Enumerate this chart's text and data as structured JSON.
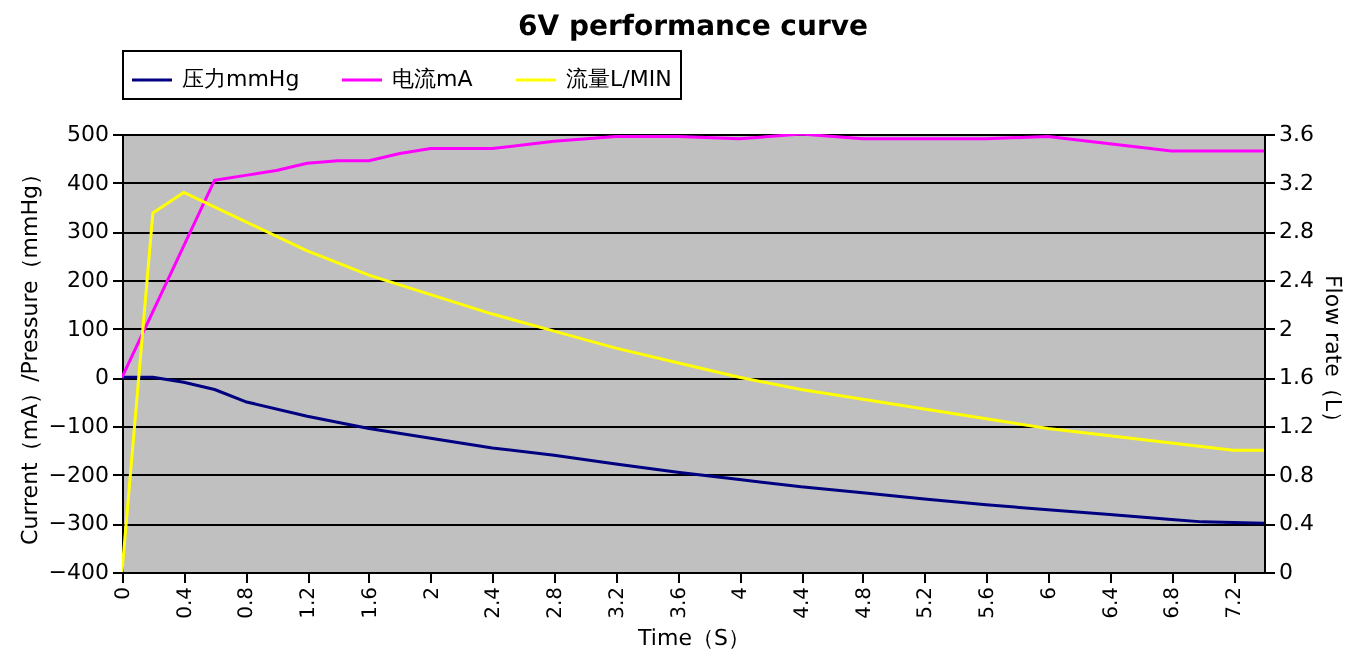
{
  "chart_data": {
    "type": "line",
    "title": "6V performance curve",
    "xlabel": "Time（S）",
    "ylabel": "Current（mA）/Pressure（mmHg）",
    "y2label": "Flow rate（L）",
    "xlim": [
      0,
      7.4
    ],
    "xticks": [
      0,
      0.4,
      0.8,
      1.2,
      1.6,
      2,
      2.4,
      2.8,
      3.2,
      3.6,
      4,
      4.4,
      4.8,
      5.2,
      5.6,
      6,
      6.4,
      6.8,
      7.2
    ],
    "ylim": [
      -400,
      500
    ],
    "yticks": [
      -400,
      -300,
      -200,
      -100,
      0,
      100,
      200,
      300,
      400,
      500
    ],
    "y2lim": [
      0,
      3.6
    ],
    "y2ticks": [
      0,
      0.4,
      0.8,
      1.2,
      1.6,
      2,
      2.4,
      2.8,
      3.2,
      3.6
    ],
    "grid": "y",
    "legend": "top",
    "series": [
      {
        "name": "压力mmHg",
        "color": "#000080",
        "x": [
          0,
          0.2,
          0.4,
          0.6,
          0.8,
          1.2,
          1.6,
          2,
          2.4,
          2.8,
          3.2,
          3.6,
          4,
          4.4,
          4.8,
          5.2,
          5.6,
          6,
          6.4,
          6.8,
          7,
          7.4
        ],
        "values": [
          0,
          0,
          -10,
          -25,
          -50,
          -80,
          -105,
          -125,
          -145,
          -160,
          -178,
          -195,
          -210,
          -225,
          -237,
          -250,
          -262,
          -272,
          -282,
          -292,
          -297,
          -300
        ]
      },
      {
        "name": "电流mA",
        "color": "#ff00ff",
        "x": [
          0,
          0.6,
          0.8,
          1,
          1.2,
          1.4,
          1.6,
          1.8,
          2,
          2.4,
          2.8,
          3.2,
          3.6,
          4,
          4.4,
          4.8,
          5.2,
          5.6,
          6,
          6.4,
          6.8,
          7.4
        ],
        "values": [
          0,
          405,
          415,
          425,
          440,
          445,
          445,
          460,
          470,
          470,
          485,
          495,
          495,
          490,
          500,
          490,
          490,
          490,
          495,
          480,
          465,
          465
        ]
      },
      {
        "name": "流量L/MIN",
        "color": "#ffff00",
        "axis": "y2",
        "x": [
          0,
          0.2,
          0.4,
          0.8,
          1.2,
          1.6,
          2,
          2.4,
          2.8,
          3.2,
          3.6,
          4,
          4.4,
          4.8,
          5.2,
          5.6,
          6,
          6.4,
          6.8,
          7.2,
          7.4
        ],
        "values": [
          0,
          2.95,
          3.12,
          2.88,
          2.64,
          2.44,
          2.28,
          2.12,
          1.98,
          1.84,
          1.72,
          1.6,
          1.5,
          1.42,
          1.34,
          1.26,
          1.18,
          1.12,
          1.06,
          1.0,
          1.0
        ]
      }
    ]
  }
}
